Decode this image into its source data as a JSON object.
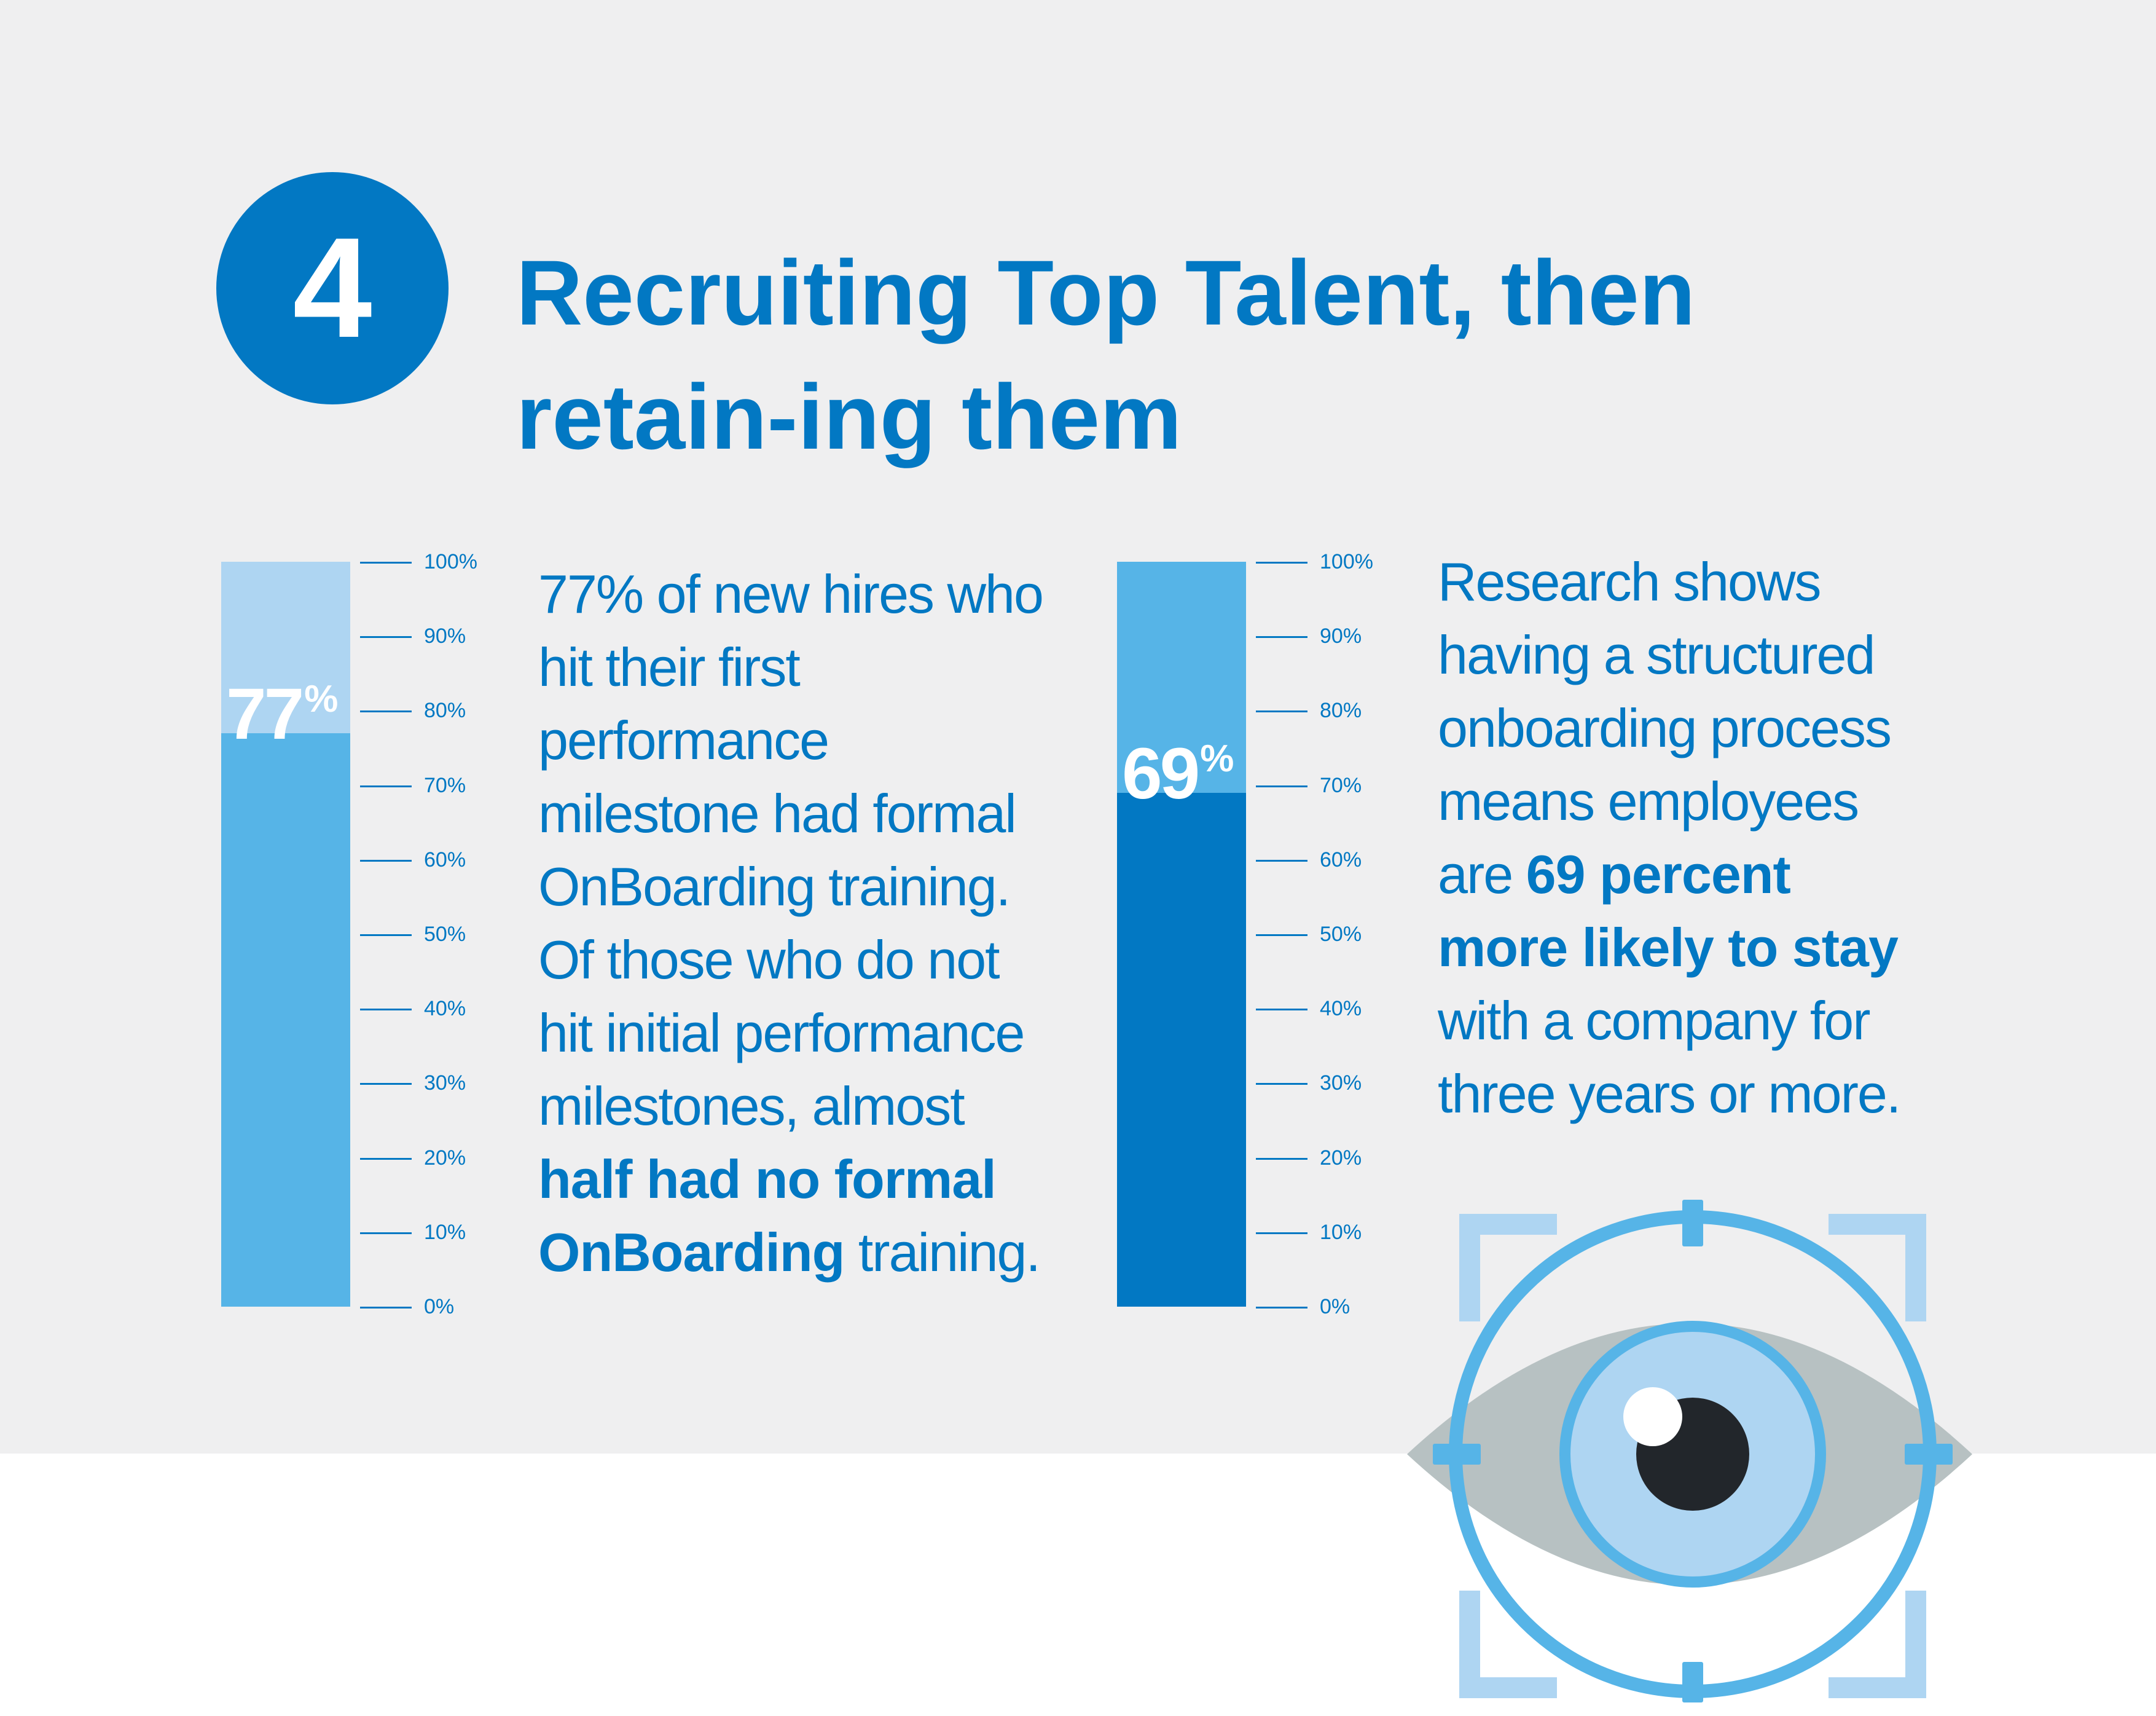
{
  "section": {
    "number": "4",
    "title": "Recruiting Top Talent, then retain-ing them"
  },
  "colors": {
    "primary_blue": "#0278c3",
    "mid_blue": "#56b4e7",
    "light_blue": "#aed5f2",
    "background_gray": "#efeff0"
  },
  "scale_labels": [
    "100%",
    "90%",
    "80%",
    "70%",
    "60%",
    "50%",
    "40%",
    "30%",
    "20%",
    "10%",
    "0%"
  ],
  "stats": [
    {
      "value": 77,
      "number": "77",
      "unit": "%",
      "description": {
        "line1": "77% of new hires who",
        "line2": "hit their first",
        "line3": "performance",
        "line4": "milestone had formal",
        "line5": "OnBoarding training.",
        "line6": "Of those who do not",
        "line7": "hit initial performance",
        "line8": "milestones, almost",
        "line9_bold": "half had no formal",
        "line10_bold": "OnBoarding",
        "line10_rest": " training."
      }
    },
    {
      "value": 69,
      "number": "69",
      "unit": "%",
      "description": {
        "line1": "Research shows",
        "line2": "having a structured",
        "line3": "onboarding process",
        "line4": "means employees",
        "line5_pre": "are ",
        "line5_bold": "69 percent",
        "line6_bold": "more likely to stay",
        "line7": "with a company for",
        "line8": "three years or more."
      }
    }
  ],
  "icons": {
    "illustration": "eye-target-icon"
  }
}
